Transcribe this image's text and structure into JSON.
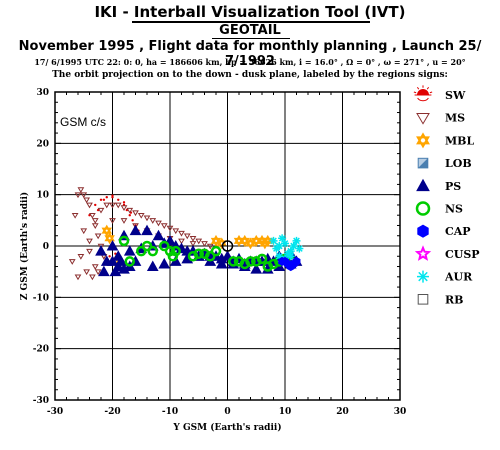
{
  "header": {
    "title": "IKI - Interball Visualization Tool (IVT)",
    "spacecraft": "GEOTAIL",
    "subtitle": "November 1995 ,  Flight data for monthly planning ,   Launch 25/ 7/1992",
    "orbit_info": "17/ 6/1995 UTC 22: 0: 0, ha = 186606 km, hp = 56626 km, i = 16.0° , Ω =   0° , ω = 271° , u =  20°",
    "projection_note": "The orbit projection on to the down - dusk plane, labeled by the regions signs:"
  },
  "frame_label": "GSM c/s",
  "chart_data": {
    "type": "scatter",
    "xlabel": "Y GSM (Earth's radii)",
    "ylabel": "Z GSM (Earth's radii)",
    "xlim": [
      -30,
      30
    ],
    "ylim": [
      -30,
      30
    ],
    "xticks": [
      "-30",
      "-20",
      "-10",
      "0",
      "10",
      "20",
      "30"
    ],
    "yticks": [
      "30",
      "20",
      "10",
      "0",
      "-10",
      "-20",
      "-30"
    ],
    "grid": true,
    "legend_position": "right",
    "legend": [
      {
        "label": "SW",
        "symbol": "sun",
        "color": "#e00000"
      },
      {
        "label": "MS",
        "symbol": "triangle-down",
        "color": "#8b2f2f"
      },
      {
        "label": "MBL",
        "symbol": "star-of-david",
        "color": "#ffa500"
      },
      {
        "label": "LOB",
        "symbol": "square-split",
        "color": "#4a7fb0"
      },
      {
        "label": "PS",
        "symbol": "triangle-up",
        "color": "#00008b"
      },
      {
        "label": "NS",
        "symbol": "circle-open",
        "color": "#00cc00"
      },
      {
        "label": "CAP",
        "symbol": "hexagon",
        "color": "#0000ff"
      },
      {
        "label": "CUSP",
        "symbol": "star-open",
        "color": "#ff00ff"
      },
      {
        "label": "AUR",
        "symbol": "asterisk",
        "color": "#00e5ee"
      },
      {
        "label": "RB",
        "symbol": "square-open",
        "color": "#555555"
      }
    ],
    "series": [
      {
        "name": "SW",
        "x": [
          -24,
          -23,
          -22,
          -21,
          -20,
          -19,
          -18,
          -17.5,
          -17,
          -16.5,
          -16,
          -15.5,
          -20.5,
          -19.5,
          -18.5,
          -22.5,
          -21.5,
          -20,
          -18,
          -16.8
        ],
        "y": [
          6,
          8,
          9,
          9.5,
          9.5,
          9,
          8,
          7,
          6,
          5,
          4,
          3,
          -2,
          -1.5,
          -2.5,
          7,
          9,
          9.8,
          8.5,
          6.5
        ]
      },
      {
        "name": "MS",
        "x": [
          -26,
          -25.5,
          -25,
          -24.5,
          -24,
          -23.5,
          -23,
          -22.5,
          -22,
          -21.5,
          -26.5,
          -25,
          -24,
          -23,
          -27,
          -26,
          -25.5,
          -24,
          -23,
          -22,
          -21,
          -20,
          -19,
          -18,
          -17,
          -16,
          -15,
          -14,
          -13,
          -12,
          -11,
          -10,
          -9,
          -8,
          -7,
          -6,
          -5,
          -4,
          -3,
          -20,
          -18,
          -16,
          -14,
          -12,
          -10,
          -8,
          -6,
          -23.5,
          -22.5,
          -21.5,
          -24.5
        ],
        "y": [
          10,
          11,
          10,
          9,
          8,
          6,
          4,
          2,
          0,
          -2,
          6,
          3,
          -1,
          -4,
          -3,
          -6,
          -2,
          1,
          5,
          7,
          8,
          8,
          8,
          7.5,
          7,
          6.5,
          6,
          5.5,
          5,
          4.5,
          4,
          3.5,
          3,
          2.5,
          2,
          1.5,
          1,
          0.5,
          0,
          5,
          5,
          4,
          3,
          2,
          1.5,
          1,
          0.5,
          -6,
          -5,
          -2,
          -5
        ]
      },
      {
        "name": "MBL",
        "x": [
          -21,
          -20.5,
          -2,
          -1,
          2,
          3,
          4,
          5,
          6,
          6.5,
          7,
          -19.5
        ],
        "y": [
          3,
          1.5,
          1,
          0.5,
          1,
          1,
          0.5,
          1,
          1,
          0.5,
          1,
          -3
        ]
      },
      {
        "name": "PS",
        "x": [
          -20,
          -18,
          -16,
          -14,
          -12,
          -10,
          -8,
          -6,
          -4,
          -2,
          0,
          2,
          4,
          6,
          8,
          10,
          -19,
          -17,
          -15,
          -13,
          -11,
          -9,
          -7,
          -5,
          -3,
          -1,
          1,
          3,
          5,
          7,
          9,
          11,
          -20,
          -19,
          -18,
          -17,
          -16,
          -22,
          -21,
          -21.5,
          -19.5,
          -18.5,
          -13,
          -11,
          -9,
          -7,
          -5,
          -3,
          -1,
          1,
          3,
          5,
          7,
          9,
          11,
          12
        ],
        "y": [
          0,
          2,
          3,
          3,
          2,
          1,
          -0.5,
          -1,
          -1.5,
          -2,
          -2,
          -2.5,
          -3,
          -3,
          -3,
          -2.5,
          -2,
          -1,
          -0.5,
          0,
          0.5,
          0,
          -1,
          -2,
          -3,
          -3.5,
          -3.5,
          -3.5,
          -3,
          -2.5,
          -2,
          -1.5,
          -3,
          -4,
          -4.5,
          -4,
          -3,
          -1,
          -3,
          -5,
          -5,
          -3,
          -4,
          -3.5,
          -3,
          -2.5,
          -2,
          -2,
          -2.5,
          -3,
          -4,
          -4.5,
          -4.5,
          -4,
          -3.5,
          -3
        ]
      },
      {
        "name": "NS",
        "x": [
          -18,
          -14,
          -13,
          -10,
          -9.5,
          -9,
          -6,
          -5,
          -4,
          -3,
          -2,
          1,
          2,
          3,
          4,
          5,
          6,
          7,
          8,
          9,
          10,
          11,
          -11,
          -15,
          -17
        ],
        "y": [
          1,
          0,
          -1,
          -1,
          -2,
          -1,
          -2,
          -1.5,
          -1.5,
          -2,
          -1,
          -3,
          -3,
          -3.5,
          -3,
          -3,
          -2.5,
          -4,
          -3.5,
          -3,
          -2.5,
          -3,
          0,
          -1,
          -3
        ]
      },
      {
        "name": "AUR",
        "x": [
          8,
          9,
          10,
          11,
          12,
          8.5,
          9.5,
          10.5,
          11.5,
          12.5,
          9,
          10,
          11
        ],
        "y": [
          1,
          0,
          0.5,
          -1,
          1,
          -0.5,
          1.5,
          -1.5,
          0,
          -0.5,
          -2,
          -2.5,
          -2
        ]
      },
      {
        "name": "CAP",
        "x": [
          10,
          10.5,
          11,
          11.5,
          12,
          9.5
        ],
        "y": [
          -3,
          -3.5,
          -4,
          -3.5,
          -3,
          -3
        ]
      },
      {
        "name": "Earth",
        "x": [
          0
        ],
        "y": [
          0
        ]
      }
    ]
  }
}
